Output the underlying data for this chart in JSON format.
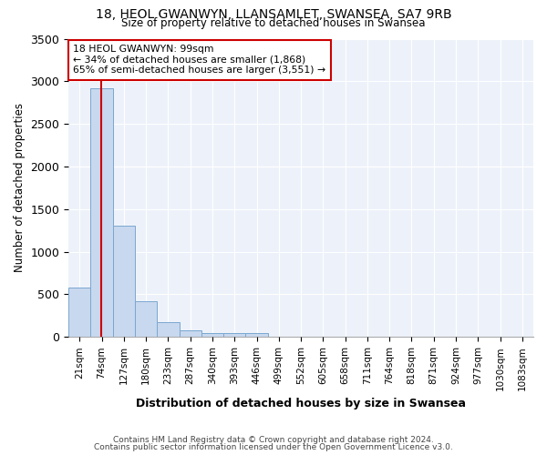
{
  "title1": "18, HEOL GWANWYN, LLANSAMLET, SWANSEA, SA7 9RB",
  "title2": "Size of property relative to detached houses in Swansea",
  "xlabel": "Distribution of detached houses by size in Swansea",
  "ylabel": "Number of detached properties",
  "categories": [
    "21sqm",
    "74sqm",
    "127sqm",
    "180sqm",
    "233sqm",
    "287sqm",
    "340sqm",
    "393sqm",
    "446sqm",
    "499sqm",
    "552sqm",
    "605sqm",
    "658sqm",
    "711sqm",
    "764sqm",
    "818sqm",
    "871sqm",
    "924sqm",
    "977sqm",
    "1030sqm",
    "1083sqm"
  ],
  "values": [
    580,
    2920,
    1310,
    420,
    170,
    75,
    50,
    45,
    45,
    0,
    0,
    0,
    0,
    0,
    0,
    0,
    0,
    0,
    0,
    0,
    0
  ],
  "bar_color": "#c8d8ee",
  "bar_edge_color": "#7ba7d0",
  "bar_edge_width": 0.7,
  "red_line_color": "#cc0000",
  "annotation_line1": "18 HEOL GWANWYN: 99sqm",
  "annotation_line2": "← 34% of detached houses are smaller (1,868)",
  "annotation_line3": "65% of semi-detached houses are larger (3,551) →",
  "annotation_box_color": "#ffffff",
  "annotation_box_edge": "#cc0000",
  "ylim": [
    0,
    3500
  ],
  "yticks": [
    0,
    500,
    1000,
    1500,
    2000,
    2500,
    3000,
    3500
  ],
  "footnote1": "Contains HM Land Registry data © Crown copyright and database right 2024.",
  "footnote2": "Contains public sector information licensed under the Open Government Licence v3.0.",
  "bg_color": "#ffffff",
  "plot_bg_color": "#edf2fa",
  "grid_color": "#ffffff",
  "bar_width": 1.0,
  "fig_width": 6.0,
  "fig_height": 5.0,
  "dpi": 100
}
